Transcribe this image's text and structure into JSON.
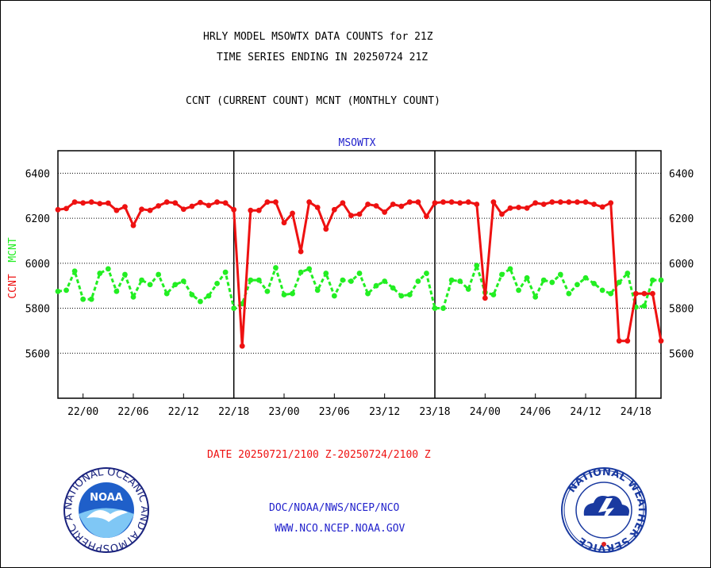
{
  "header": {
    "title_line1": "HRLY MODEL MSOWTX DATA COUNTS for 21Z",
    "title_line2": "TIME SERIES ENDING IN 20250724 21Z",
    "subtitle": "CCNT (CURRENT COUNT) MCNT (MONTHLY COUNT)"
  },
  "footer": {
    "date_range": "DATE 20250721/2100 Z-20250724/2100 Z",
    "org_line": "DOC/NOAA/NWS/NCEP/NCO",
    "url": "WWW.NCO.NCEP.NOAA.GOV"
  },
  "logos": {
    "noaa": {
      "text": "NOAA",
      "ring_text": "NATIONAL OCEANIC AND ATMOSPHERIC ADMINISTRATION • U.S. DEPARTMENT OF COMMERCE •"
    },
    "nws": {
      "ring_text": "NATIONAL WEATHER SERVICE"
    }
  },
  "colors": {
    "ccnt": "#ee1111",
    "mcnt": "#22ee22",
    "station_label": "#2222cc",
    "footer_date": "#ee1111",
    "footer_links": "#2222cc"
  },
  "chart_data": {
    "type": "line",
    "station": "MSOWTX",
    "xlabel": "DATE 20250721/2100 Z-20250724/2100 Z",
    "ylabel_left": [
      "CCNT",
      "MCNT"
    ],
    "x_range_hours": [
      0,
      72
    ],
    "x_ticks": [
      {
        "hour": 3,
        "label": "22/00"
      },
      {
        "hour": 9,
        "label": "22/06"
      },
      {
        "hour": 15,
        "label": "22/12"
      },
      {
        "hour": 21,
        "label": "22/18"
      },
      {
        "hour": 27,
        "label": "23/00"
      },
      {
        "hour": 33,
        "label": "23/06"
      },
      {
        "hour": 39,
        "label": "23/12"
      },
      {
        "hour": 45,
        "label": "23/18"
      },
      {
        "hour": 51,
        "label": "24/00"
      },
      {
        "hour": 57,
        "label": "24/06"
      },
      {
        "hour": 63,
        "label": "24/12"
      },
      {
        "hour": 69,
        "label": "24/18"
      }
    ],
    "y_ticks": [
      5600,
      5800,
      6000,
      6200,
      6400
    ],
    "ylim": [
      5400,
      6500
    ],
    "grid": "horizontal dotted at y ticks",
    "day_boundaries_hours": [
      21,
      45,
      69
    ],
    "series": [
      {
        "name": "CCNT",
        "values": [
          6238,
          6243,
          6272,
          6268,
          6272,
          6265,
          6267,
          6235,
          6251,
          6168,
          6240,
          6235,
          6255,
          6272,
          6268,
          6240,
          6253,
          6270,
          6257,
          6272,
          6268,
          6238,
          5632,
          6235,
          6235,
          6272,
          6272,
          6180,
          6222,
          6052,
          6272,
          6248,
          6152,
          6238,
          6268,
          6212,
          6218,
          6262,
          6255,
          6227,
          6262,
          6253,
          6272,
          6272,
          6208,
          6268,
          6272,
          6272,
          6268,
          6272,
          6262,
          5845,
          6272,
          6218,
          6245,
          6248,
          6245,
          6268,
          6262,
          6272,
          6272,
          6272,
          6272,
          6272,
          6262,
          6250,
          6268,
          5655,
          5655,
          5865,
          5865,
          5865,
          5655
        ]
      },
      {
        "name": "MCNT",
        "values": [
          5875,
          5880,
          5965,
          5840,
          5840,
          5955,
          5975,
          5875,
          5950,
          5850,
          5925,
          5905,
          5950,
          5865,
          5905,
          5920,
          5860,
          5830,
          5855,
          5910,
          5960,
          5800,
          5820,
          5925,
          5925,
          5875,
          5980,
          5860,
          5865,
          5960,
          5975,
          5880,
          5955,
          5855,
          5925,
          5920,
          5955,
          5865,
          5900,
          5920,
          5890,
          5855,
          5860,
          5920,
          5955,
          5800,
          5800,
          5925,
          5920,
          5885,
          5990,
          5870,
          5860,
          5950,
          5975,
          5880,
          5935,
          5850,
          5925,
          5915,
          5950,
          5865,
          5905,
          5935,
          5910,
          5880,
          5865,
          5915,
          5955,
          5805,
          5810,
          5925,
          5925
        ]
      }
    ]
  }
}
